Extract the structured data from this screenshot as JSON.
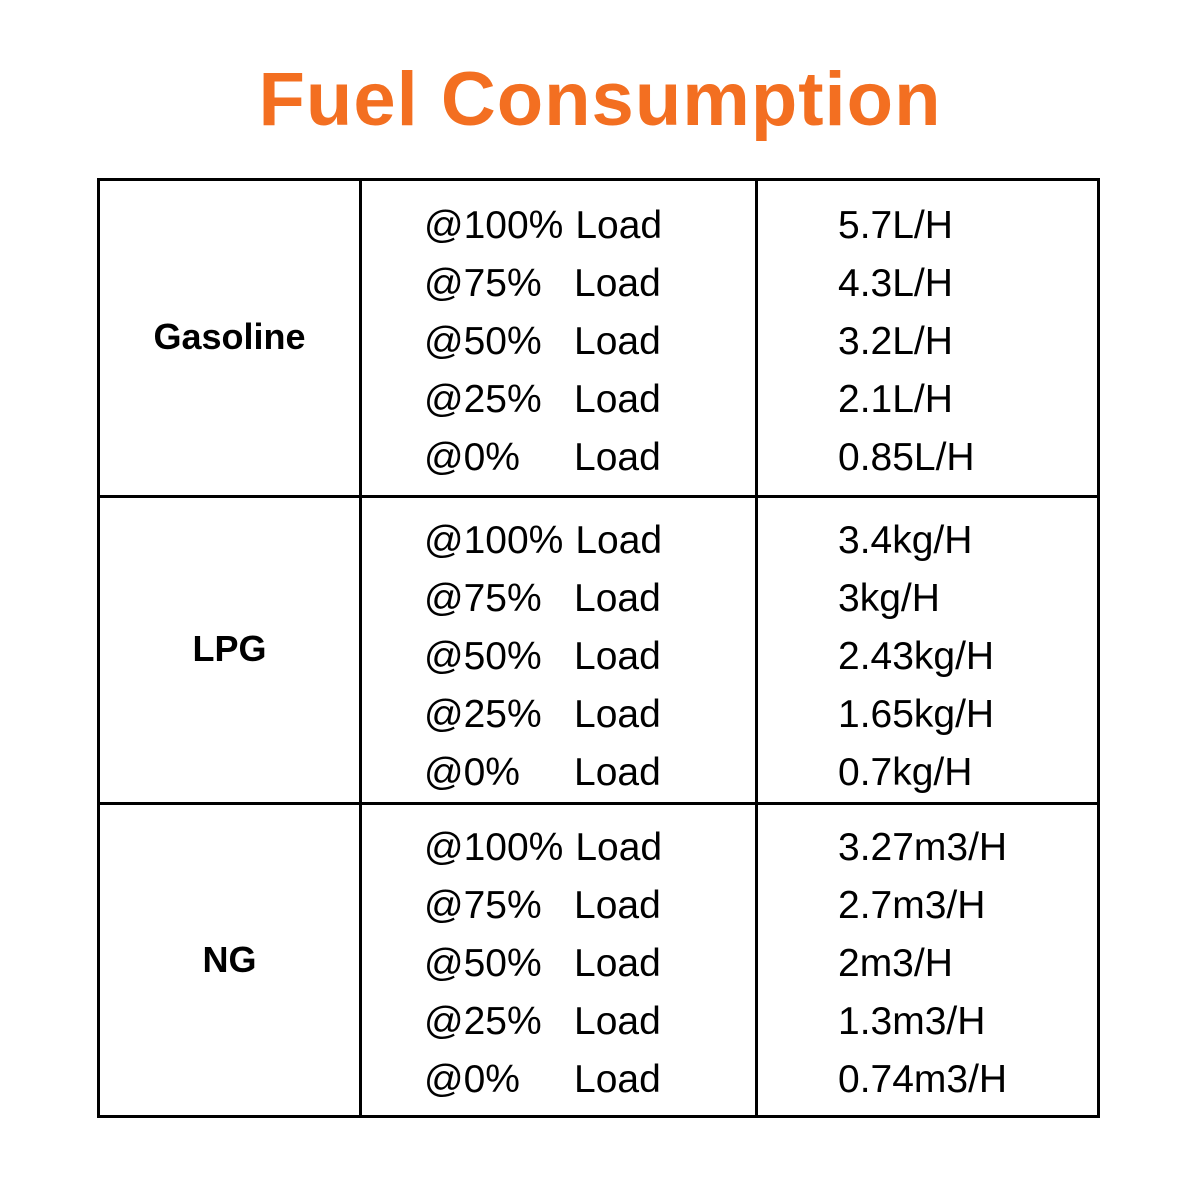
{
  "title": "Fuel Consumption",
  "colors": {
    "title": "#F36F21",
    "border": "#000000",
    "text": "#000000",
    "background": "#FFFFFF"
  },
  "table": {
    "fuels": [
      {
        "name": "Gasoline",
        "rows": [
          {
            "load": "@100%",
            "label": "Load",
            "value": "5.7L/H"
          },
          {
            "load": "@75%",
            "label": "Load",
            "value": "4.3L/H"
          },
          {
            "load": "@50%",
            "label": "Load",
            "value": "3.2L/H"
          },
          {
            "load": "@25%",
            "label": "Load",
            "value": "2.1L/H"
          },
          {
            "load": "@0%",
            "label": "Load",
            "value": "0.85L/H"
          }
        ]
      },
      {
        "name": "LPG",
        "rows": [
          {
            "load": "@100%",
            "label": "Load",
            "value": "3.4kg/H"
          },
          {
            "load": "@75%",
            "label": "Load",
            "value": "3kg/H"
          },
          {
            "load": "@50%",
            "label": "Load",
            "value": "2.43kg/H"
          },
          {
            "load": "@25%",
            "label": "Load",
            "value": "1.65kg/H"
          },
          {
            "load": "@0%",
            "label": "Load",
            "value": "0.7kg/H"
          }
        ]
      },
      {
        "name": "NG",
        "rows": [
          {
            "load": "@100%",
            "label": "Load",
            "value": "3.27m3/H"
          },
          {
            "load": "@75%",
            "label": "Load",
            "value": "2.7m3/H"
          },
          {
            "load": "@50%",
            "label": "Load",
            "value": "2m3/H"
          },
          {
            "load": "@25%",
            "label": "Load",
            "value": "1.3m3/H"
          },
          {
            "load": "@0%",
            "label": "Load",
            "value": "0.74m3/H"
          }
        ]
      }
    ]
  }
}
